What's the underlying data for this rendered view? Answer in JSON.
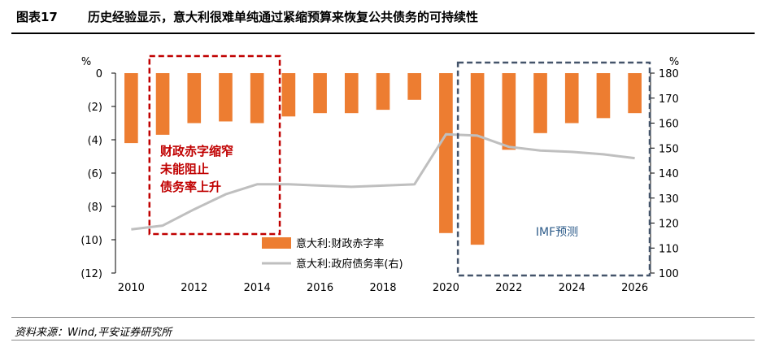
{
  "header": {
    "figure_label": "图表17",
    "title": "历史经验显示，意大利很难单纯通过紧缩预算来恢复公共债务的可持续性"
  },
  "source": "资料来源：Wind,平安证券研究所",
  "colors": {
    "bar": "#ED7D31",
    "line": "#BFBFBF",
    "red_box": "#C00000",
    "blue_box": "#44546A",
    "red_text": "#C00000",
    "blue_text": "#2E5C8A",
    "axis_text": "#000000"
  },
  "annotations": {
    "red_box_text": [
      "财政赤字缩窄",
      "未能阻止",
      "债务率上升"
    ],
    "blue_box_text": "IMF预测"
  },
  "chart_data": {
    "type": "bar+line",
    "years": [
      2010,
      2011,
      2012,
      2013,
      2014,
      2015,
      2016,
      2017,
      2018,
      2019,
      2020,
      2021,
      2022,
      2023,
      2024,
      2025,
      2026
    ],
    "x_tick_labels": [
      "2010",
      "2012",
      "2014",
      "2016",
      "2018",
      "2020",
      "2022",
      "2024",
      "2026"
    ],
    "x_tick_years": [
      2010,
      2012,
      2014,
      2016,
      2018,
      2020,
      2022,
      2024,
      2026
    ],
    "series": [
      {
        "name": "意大利:财政赤字率",
        "type": "bar",
        "axis": "left",
        "values": [
          -4.2,
          -3.7,
          -3.0,
          -2.9,
          -3.0,
          -2.6,
          -2.4,
          -2.4,
          -2.2,
          -1.6,
          -9.6,
          -10.3,
          -4.6,
          -3.6,
          -3.0,
          -2.7,
          -2.4
        ]
      },
      {
        "name": "意大利:政府债务率(右)",
        "type": "line",
        "axis": "right",
        "values": [
          117.5,
          119.0,
          125.5,
          131.5,
          135.5,
          135.5,
          135,
          134.5,
          135,
          135.5,
          155.5,
          155,
          150.5,
          149,
          148.5,
          147.5,
          146
        ]
      }
    ],
    "left_axis": {
      "unit": "%",
      "ylim": [
        -12,
        0
      ],
      "ticks": [
        0,
        -2,
        -4,
        -6,
        -8,
        -10,
        -12
      ],
      "tick_labels": [
        "0",
        "(2)",
        "(4)",
        "(6)",
        "(8)",
        "(10)",
        "(12)"
      ]
    },
    "right_axis": {
      "unit": "%",
      "ylim": [
        100,
        180
      ],
      "ticks": [
        180,
        170,
        160,
        150,
        140,
        130,
        120,
        110,
        100
      ],
      "tick_labels": [
        "180",
        "170",
        "160",
        "150",
        "140",
        "130",
        "120",
        "110",
        "100"
      ]
    },
    "legend": {
      "placement": "lower-center",
      "entries": [
        "意大利:财政赤字率",
        "意大利:政府债务率(右)"
      ]
    },
    "highlight_ranges": [
      {
        "label": "red",
        "from_year": 2011,
        "to_year": 2014
      },
      {
        "label": "blue",
        "from_year": 2021,
        "to_year": 2026
      }
    ]
  }
}
